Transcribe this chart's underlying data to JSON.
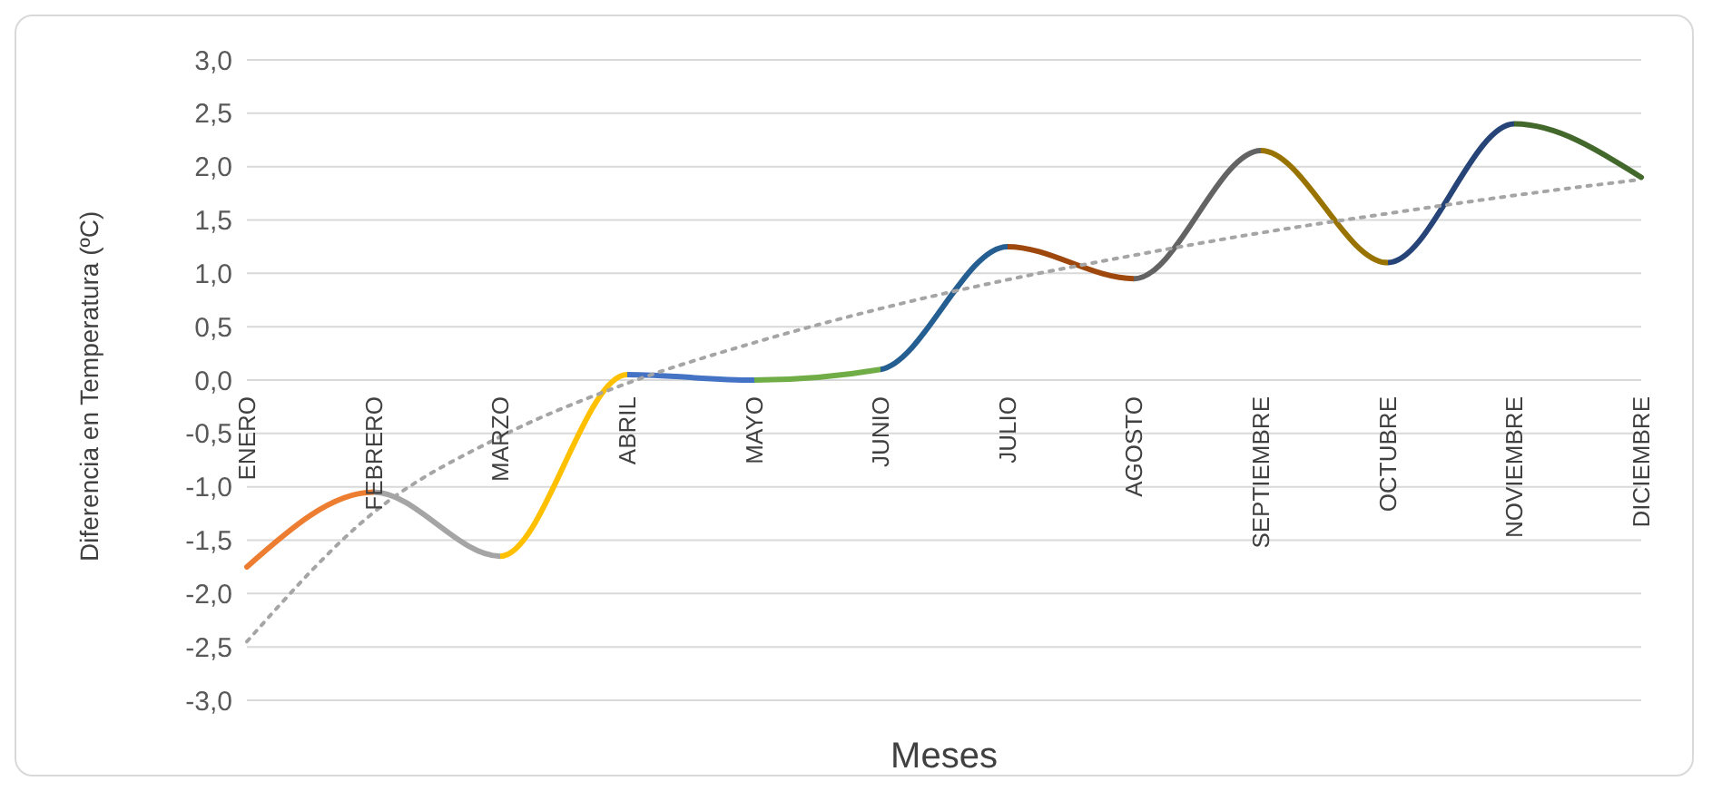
{
  "chart_data": {
    "type": "line",
    "xlabel": "Meses",
    "ylabel": "Diferencia en Temperatura (ºC)",
    "categories": [
      "ENERO",
      "FEBRERO",
      "MARZO",
      "ABRIL",
      "MAYO",
      "JUNIO",
      "JULIO",
      "AGOSTO",
      "SEPTIEMBRE",
      "OCTUBRE",
      "NOVIEMBRE",
      "DICIEMBRE"
    ],
    "series": [
      {
        "colors": [
          "#ed7d31",
          "#a5a5a5",
          "#ffc000",
          "#4472c4",
          "#70ad47",
          "#255e91",
          "#9e480e",
          "#636363",
          "#997300",
          "#264478",
          "#43682b",
          "#43682b"
        ],
        "values": [
          -1.75,
          -1.05,
          -1.65,
          0.05,
          0.0,
          0.1,
          1.25,
          0.95,
          2.15,
          1.1,
          2.4,
          1.9
        ]
      },
      {
        "color": "#a5a5a5",
        "line_style": "dotted",
        "values": [
          -2.45,
          -1.24,
          -0.53,
          -0.03,
          0.35,
          0.67,
          0.94,
          1.17,
          1.38,
          1.56,
          1.73,
          1.88
        ]
      }
    ],
    "ylim": [
      -3,
      3
    ],
    "yticks": [
      {
        "value": -3,
        "label": "-3,0"
      },
      {
        "value": -2.5,
        "label": "-2,5"
      },
      {
        "value": -2,
        "label": "-2,0"
      },
      {
        "value": -1.5,
        "label": "-1,5"
      },
      {
        "value": -1,
        "label": "-1,0"
      },
      {
        "value": -0.5,
        "label": "-0,5"
      },
      {
        "value": 0,
        "label": "0,0"
      },
      {
        "value": 0.5,
        "label": "0,5"
      },
      {
        "value": 1,
        "label": "1,0"
      },
      {
        "value": 1.5,
        "label": "1,5"
      },
      {
        "value": 2,
        "label": "2,0"
      },
      {
        "value": 2.5,
        "label": "2,5"
      },
      {
        "value": 3,
        "label": "3,0"
      }
    ],
    "grid": "y",
    "marker": "none"
  }
}
